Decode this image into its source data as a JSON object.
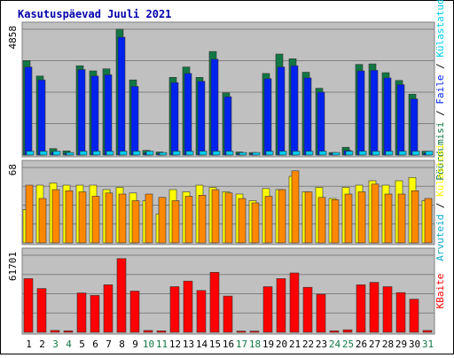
{
  "title": "Kasutuspäevad Juuli 2021",
  "colors": {
    "background": "#ffffff",
    "plot_bg": "#c0c0c0",
    "frame": "#808080",
    "title": "#0000aa",
    "visits": "#117744",
    "pages": "#0022ee",
    "files": "#00ccee",
    "hits": "#11aacc",
    "sites": "#ffff00",
    "kbytes": "#ff0000",
    "weekday_label": "#000000",
    "weekend_label": "#117744"
  },
  "chart_data": [
    {
      "type": "bar",
      "panel": "top",
      "scale_max_label": "4858",
      "ymax": 4858,
      "categories": [
        "1",
        "2",
        "3",
        "4",
        "5",
        "6",
        "7",
        "8",
        "9",
        "10",
        "11",
        "12",
        "13",
        "14",
        "15",
        "16",
        "17",
        "18",
        "19",
        "20",
        "21",
        "22",
        "23",
        "24",
        "25",
        "26",
        "27",
        "28",
        "29",
        "30",
        "31"
      ],
      "weekend": [
        false,
        false,
        true,
        true,
        false,
        false,
        false,
        false,
        false,
        true,
        true,
        false,
        false,
        false,
        false,
        false,
        true,
        true,
        false,
        false,
        false,
        false,
        false,
        true,
        true,
        false,
        false,
        false,
        false,
        false,
        true
      ],
      "right_label": [
        {
          "text": "Pöördumisi",
          "color_key": "visits"
        },
        {
          "text": " / ",
          "color_key": "weekday_label"
        },
        {
          "text": "Faile",
          "color_key": "pages"
        },
        {
          "text": " / ",
          "color_key": "weekday_label"
        },
        {
          "text": "Külastatud",
          "color_key": "files"
        }
      ],
      "series": [
        {
          "name": "Pöördumisi",
          "color_key": "visits",
          "values": [
            3650,
            3050,
            250,
            160,
            3450,
            3250,
            3330,
            4858,
            2900,
            180,
            120,
            3000,
            3400,
            3000,
            4000,
            2400,
            120,
            100,
            3150,
            3900,
            3720,
            3200,
            2580,
            100,
            300,
            3500,
            3520,
            3180,
            2880,
            2350,
            150
          ]
        },
        {
          "name": "Faile",
          "color_key": "pages",
          "values": [
            3400,
            2900,
            110,
            70,
            3300,
            3050,
            3100,
            4550,
            2650,
            90,
            70,
            2800,
            3150,
            2850,
            3700,
            2250,
            70,
            60,
            2950,
            3400,
            3450,
            2980,
            2430,
            60,
            180,
            3250,
            3270,
            2980,
            2720,
            2170,
            80
          ]
        },
        {
          "name": "Külastatud",
          "color_key": "files",
          "values": [
            150,
            150,
            150,
            100,
            150,
            150,
            150,
            150,
            150,
            150,
            100,
            150,
            150,
            150,
            150,
            150,
            100,
            100,
            150,
            150,
            150,
            150,
            150,
            100,
            150,
            150,
            150,
            150,
            150,
            150,
            150
          ]
        }
      ]
    },
    {
      "type": "bar",
      "panel": "middle",
      "scale_max_label": "68",
      "ymax": 68,
      "categories": [
        "1",
        "2",
        "3",
        "4",
        "5",
        "6",
        "7",
        "8",
        "9",
        "10",
        "11",
        "12",
        "13",
        "14",
        "15",
        "16",
        "17",
        "18",
        "19",
        "20",
        "21",
        "22",
        "23",
        "24",
        "25",
        "26",
        "27",
        "28",
        "29",
        "30",
        "31"
      ],
      "right_label": [
        {
          "text": "Arvuteid",
          "color_key": "hits"
        },
        {
          "text": " / ",
          "color_key": "weekday_label"
        },
        {
          "text": "Külastusi",
          "color_key": "sites"
        }
      ],
      "series": [
        {
          "name": "Külastusi",
          "color_key": "sites",
          "values": [
            30,
            52,
            54,
            52,
            52,
            52,
            48,
            50,
            45,
            38,
            26,
            48,
            46,
            52,
            50,
            46,
            44,
            38,
            49,
            48,
            60,
            46,
            50,
            40,
            50,
            52,
            56,
            52,
            56,
            59,
            38
          ]
        },
        {
          "name": "Arvuteid",
          "color_key": "hits",
          "values": [
            52,
            40,
            48,
            47,
            46,
            42,
            45,
            44,
            38,
            44,
            41,
            38,
            42,
            43,
            48,
            45,
            40,
            36,
            42,
            48,
            65,
            46,
            41,
            39,
            44,
            46,
            53,
            44,
            44,
            47,
            40
          ]
        }
      ]
    },
    {
      "type": "bar",
      "panel": "bottom",
      "scale_max_label": "61701",
      "ymax": 61701,
      "categories": [
        "1",
        "2",
        "3",
        "4",
        "5",
        "6",
        "7",
        "8",
        "9",
        "10",
        "11",
        "12",
        "13",
        "14",
        "15",
        "16",
        "17",
        "18",
        "19",
        "20",
        "21",
        "22",
        "23",
        "24",
        "25",
        "26",
        "27",
        "28",
        "29",
        "30",
        "31"
      ],
      "right_label": [
        {
          "text": "KBaite",
          "color_key": "kbytes"
        }
      ],
      "series": [
        {
          "name": "KBaite",
          "color_key": "kbytes",
          "values": [
            43000,
            35000,
            1500,
            1200,
            31500,
            29500,
            38000,
            59000,
            33000,
            1500,
            1200,
            36500,
            41000,
            33500,
            48000,
            29000,
            1000,
            1000,
            36500,
            43000,
            47500,
            36000,
            30500,
            1200,
            2000,
            38000,
            40000,
            36500,
            31800,
            26500,
            1500
          ]
        }
      ]
    }
  ]
}
